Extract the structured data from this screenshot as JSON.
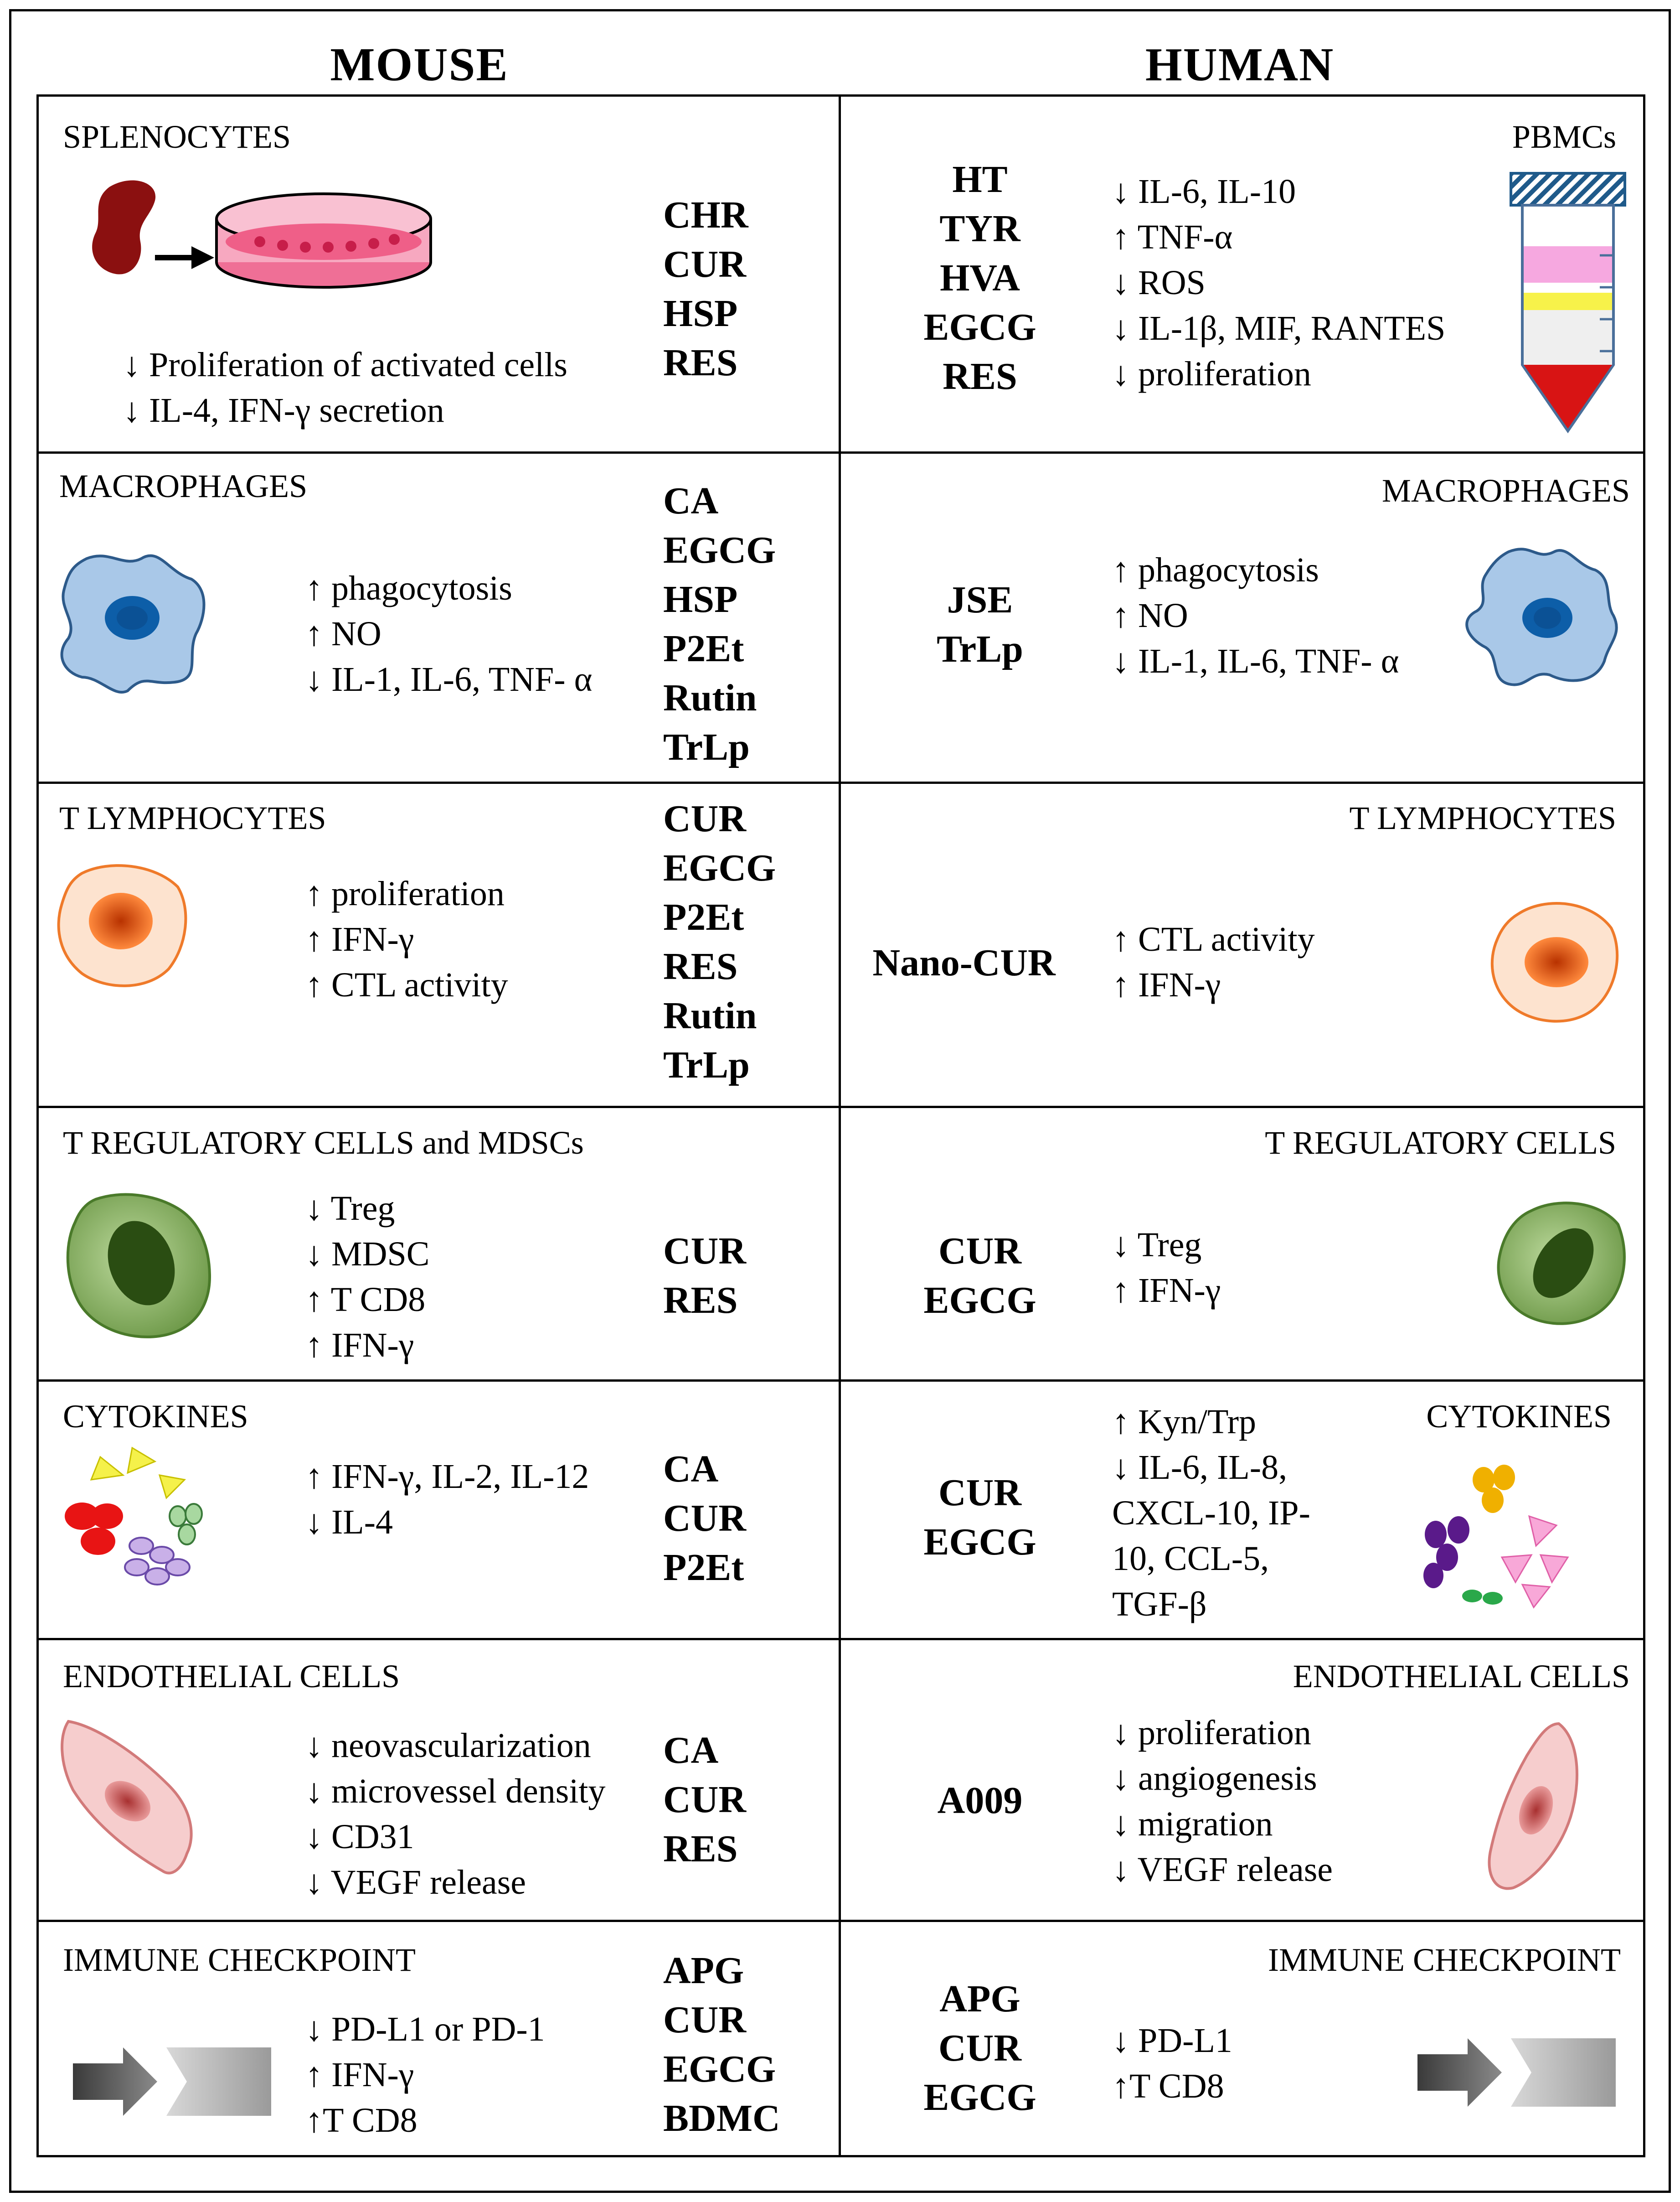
{
  "headers": {
    "mouse": "MOUSE",
    "human": "HUMAN"
  },
  "rows": [
    {
      "mouse": {
        "title": "SPLENOCYTES",
        "compounds": [
          "CHR",
          "CUR",
          "HSP",
          "RES"
        ],
        "effects": [
          "↓ Proliferation of activated cells",
          "↓ IL-4, IFN-γ secretion"
        ]
      },
      "human": {
        "title": "PBMCs",
        "compounds": [
          "HT",
          "TYR",
          "HVA",
          "EGCG",
          "RES"
        ],
        "effects": [
          "↓ IL-6, IL-10",
          "↑ TNF-α",
          "↓ ROS",
          "↓ IL-1β, MIF, RANTES",
          "↓ proliferation"
        ]
      }
    },
    {
      "mouse": {
        "title": "MACROPHAGES",
        "compounds": [
          "CA",
          "EGCG",
          "HSP",
          "P2Et",
          "Rutin",
          "TrLp"
        ],
        "effects": [
          "↑ phagocytosis",
          "↑ NO",
          "↓ IL-1, IL-6, TNF- α"
        ]
      },
      "human": {
        "title": "MACROPHAGES",
        "compounds": [
          "JSE",
          "TrLp"
        ],
        "effects": [
          "↑ phagocytosis",
          "↑ NO",
          "↓ IL-1, IL-6, TNF- α"
        ]
      }
    },
    {
      "mouse": {
        "title": "T  LYMPHOCYTES",
        "compounds": [
          "CUR",
          "EGCG",
          "P2Et",
          "RES",
          "Rutin",
          "TrLp"
        ],
        "effects": [
          "↑ proliferation",
          "↑ IFN-γ",
          "↑ CTL activity"
        ]
      },
      "human": {
        "title": "T  LYMPHOCYTES",
        "compounds": [
          "Nano-CUR"
        ],
        "effects": [
          "↑ CTL activity",
          "↑ IFN-γ"
        ]
      }
    },
    {
      "mouse": {
        "title": "T  REGULATORY CELLS and MDSCs",
        "compounds": [
          "CUR",
          "RES"
        ],
        "effects": [
          "↓ Treg",
          "↓ MDSC",
          "↑ T CD8",
          "↑ IFN-γ"
        ]
      },
      "human": {
        "title": "T  REGULATORY CELLS",
        "compounds": [
          "CUR",
          "EGCG"
        ],
        "effects": [
          "↓ Treg",
          "↑ IFN-γ"
        ]
      }
    },
    {
      "mouse": {
        "title": "CYTOKINES",
        "compounds": [
          "CA",
          "CUR",
          "P2Et"
        ],
        "effects": [
          "↑ IFN-γ, IL-2, IL-12",
          "↓ IL-4"
        ]
      },
      "human": {
        "title": "CYTOKINES",
        "compounds": [
          "CUR",
          "EGCG"
        ],
        "effects": [
          "↑ Kyn/Trp",
          "↓ IL-6, IL-8,",
          "CXCL-10, IP-",
          "10, CCL-5,",
          "TGF-β"
        ]
      }
    },
    {
      "mouse": {
        "title": "ENDOTHELIAL  CELLS",
        "compounds": [
          "CA",
          "CUR",
          "RES"
        ],
        "effects": [
          "↓ neovascularization",
          "↓ microvessel density",
          "↓ CD31",
          "↓ VEGF release"
        ]
      },
      "human": {
        "title": "ENDOTHELIAL  CELLS",
        "compounds": [
          "A009"
        ],
        "effects": [
          "↓ proliferation",
          "↓ angiogenesis",
          "↓ migration",
          "↓ VEGF release"
        ]
      }
    },
    {
      "mouse": {
        "title": "IMMUNE CHECKPOINT",
        "compounds": [
          "APG",
          "CUR",
          "EGCG",
          "BDMC"
        ],
        "effects": [
          "↓ PD-L1 or PD-1",
          "↑ IFN-γ",
          "↑T CD8"
        ]
      },
      "human": {
        "title": "IMMUNE CHECKPOINT",
        "compounds": [
          "APG",
          "CUR",
          "EGCG"
        ],
        "effects": [
          "↓ PD-L1",
          "↑T CD8"
        ]
      }
    }
  ],
  "colors": {
    "macrophage_fill": "#a9c8e8",
    "macrophage_nucleus": "#0d5ea8",
    "tcell_fill": "#fde3cf",
    "tcell_nucleus": "#e0520e",
    "tcell_border": "#ef7a2a",
    "treg_fill": "#8fb56d",
    "treg_nucleus": "#2a4d12",
    "endothelial_fill": "#f6cdcd",
    "endothelial_nucleus": "#d07a7a",
    "spleen": "#8b1010",
    "dish": "#ef6f96"
  }
}
